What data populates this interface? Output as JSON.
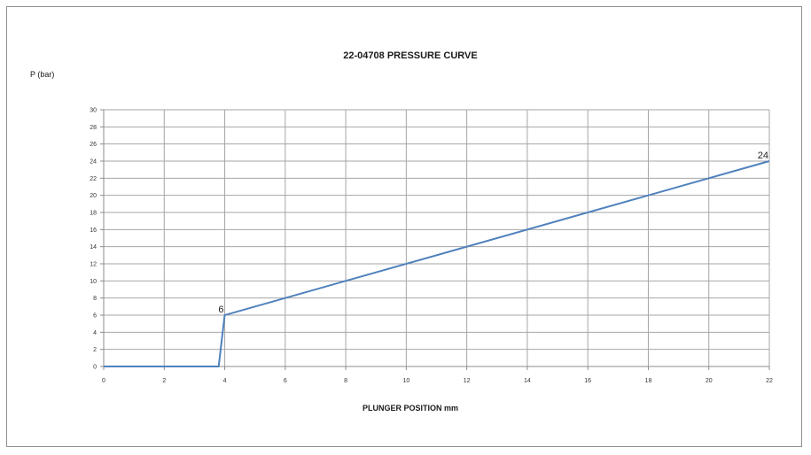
{
  "chart_data": {
    "type": "line",
    "title": "22-04708 PRESSURE CURVE",
    "xlabel": "PLUNGER POSITION mm",
    "ylabel": "P (bar)",
    "xlim": [
      0,
      22
    ],
    "ylim": [
      0,
      30
    ],
    "x_ticks": [
      0,
      2,
      4,
      6,
      8,
      10,
      12,
      14,
      16,
      18,
      20,
      22
    ],
    "y_ticks": [
      0,
      2,
      4,
      6,
      8,
      10,
      12,
      14,
      16,
      18,
      20,
      22,
      24,
      26,
      28,
      30
    ],
    "grid": true,
    "legend": "none",
    "series": [
      {
        "color": "#4f81bd",
        "x": [
          0,
          3.8,
          4,
          22
        ],
        "y": [
          0,
          0,
          6,
          24
        ]
      }
    ],
    "data_labels": [
      {
        "x": 4,
        "y": 6,
        "text": "6"
      },
      {
        "x": 22,
        "y": 24,
        "text": "24"
      }
    ]
  }
}
